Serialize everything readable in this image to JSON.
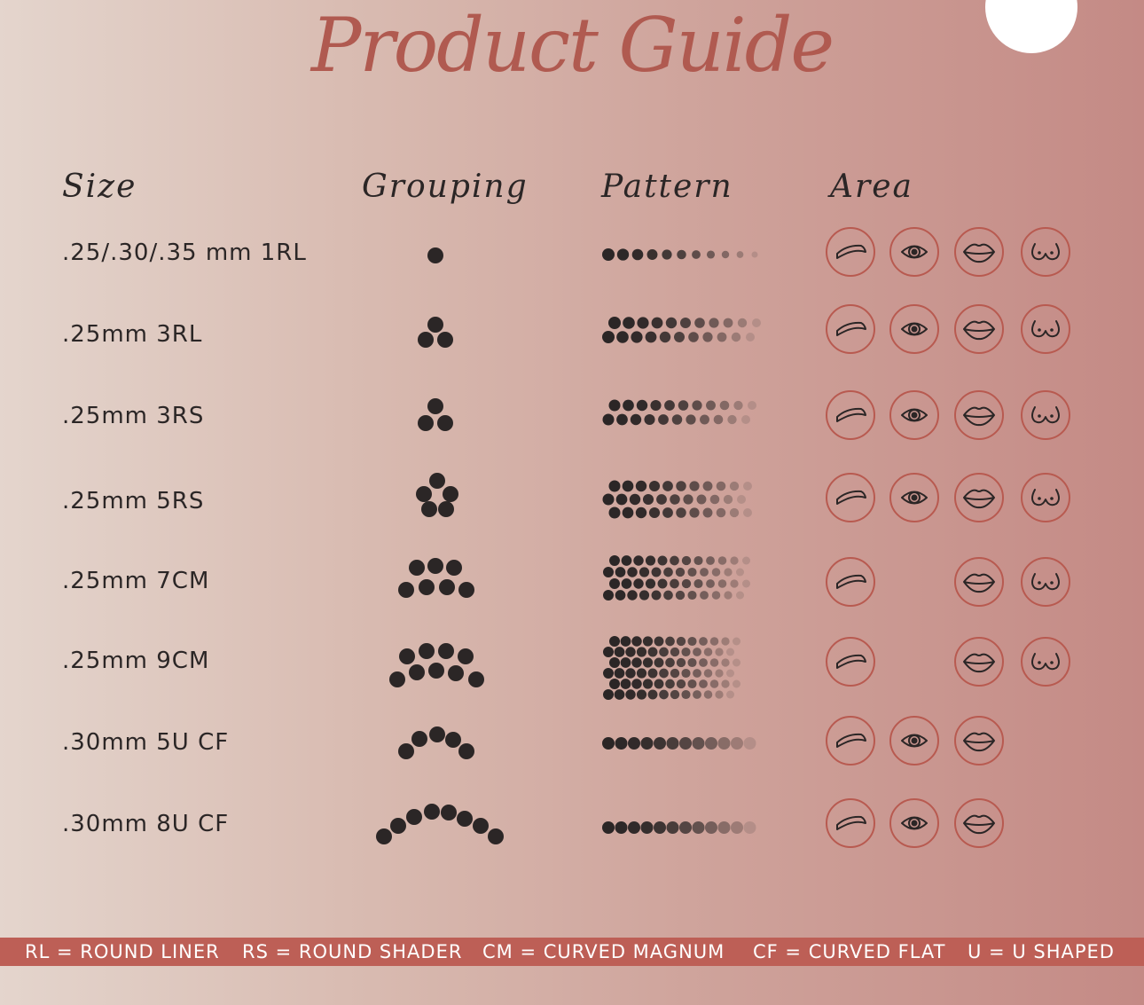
{
  "title": "Product Guide",
  "add_button_icon": "plus-icon",
  "headers": {
    "size": "Size",
    "grouping": "Grouping",
    "pattern": "Pattern",
    "area": "Area"
  },
  "rows": [
    {
      "size": ".25/.30/.35 mm 1RL",
      "areas": [
        "brow",
        "eye",
        "lips",
        "chest"
      ]
    },
    {
      "size": ".25mm 3RL",
      "areas": [
        "brow",
        "eye",
        "lips",
        "chest"
      ]
    },
    {
      "size": ".25mm 3RS",
      "areas": [
        "brow",
        "eye",
        "lips",
        "chest"
      ]
    },
    {
      "size": ".25mm 5RS",
      "areas": [
        "brow",
        "eye",
        "lips",
        "chest"
      ]
    },
    {
      "size": ".25mm 7CM",
      "areas": [
        "brow",
        "lips",
        "chest"
      ]
    },
    {
      "size": ".25mm 9CM",
      "areas": [
        "brow",
        "lips",
        "chest"
      ]
    },
    {
      "size": ".30mm 5U CF",
      "areas": [
        "brow",
        "eye",
        "lips"
      ]
    },
    {
      "size": ".30mm 8U CF",
      "areas": [
        "brow",
        "eye",
        "lips"
      ]
    }
  ],
  "legend": [
    "RL = ROUND LINER",
    "RS = ROUND SHADER",
    "CM = CURVED MAGNUM",
    "CF = CURVED FLAT",
    "U = U SHAPED"
  ],
  "colors": {
    "accent": "#b05a50",
    "legend_bar": "#bd5f56",
    "icon_ring": "#b85a50",
    "dot": "#2b2626"
  }
}
